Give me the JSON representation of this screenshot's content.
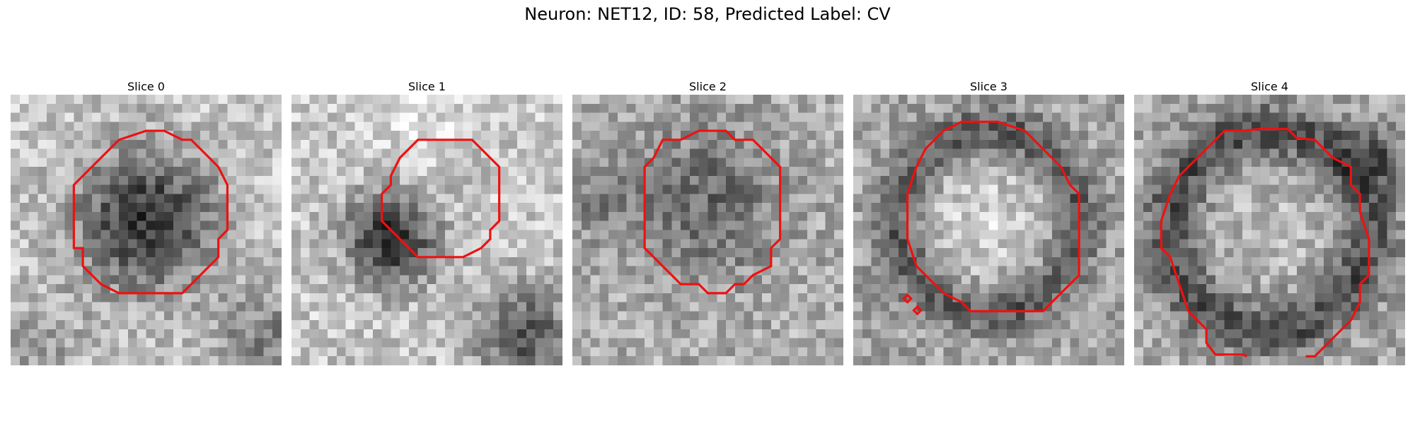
{
  "title": "Neuron: NET12, ID: 58, Predicted Label: CV",
  "colors": {
    "contour": "#ee1111",
    "colormap": "gray"
  },
  "panels": [
    {
      "label": "Slice 0",
      "shading": "dark-center"
    },
    {
      "label": "Slice 1",
      "shading": "dark-lower-left"
    },
    {
      "label": "Slice 2",
      "shading": "noisy-mid"
    },
    {
      "label": "Slice 3",
      "shading": "light-center-dark-ring"
    },
    {
      "label": "Slice 4",
      "shading": "dark-ring"
    }
  ]
}
